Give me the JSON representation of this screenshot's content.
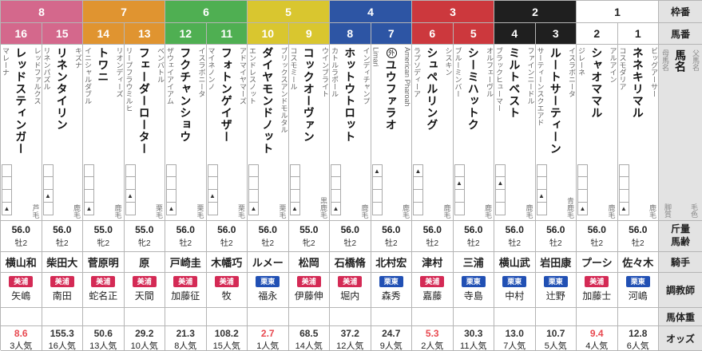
{
  "labels": {
    "frame": "枠番",
    "number": "馬番",
    "horse_name": "馬名",
    "sire": "父馬名",
    "dam": "母馬名",
    "running_style": "脚質",
    "coat": "毛色",
    "weight_age": "斤量\n馬齢",
    "jockey": "騎手",
    "trainer": "調教師",
    "body_weight": "馬体重",
    "odds": "オッズ"
  },
  "colors": {
    "hot_odds": "#e8484f",
    "region": {
      "美浦": "#d42a55",
      "栗東": "#2150b4"
    }
  },
  "frames": [
    {
      "num": "8",
      "bg": "#d4688c",
      "fg": "#ffffff"
    },
    {
      "num": "7",
      "bg": "#e09430",
      "fg": "#ffffff"
    },
    {
      "num": "6",
      "bg": "#4faf52",
      "fg": "#ffffff"
    },
    {
      "num": "5",
      "bg": "#d9c62f",
      "fg": "#ffffff"
    },
    {
      "num": "4",
      "bg": "#2d55a4",
      "fg": "#ffffff"
    },
    {
      "num": "3",
      "bg": "#cc383d",
      "fg": "#ffffff"
    },
    {
      "num": "2",
      "bg": "#1f1f1f",
      "fg": "#ffffff"
    },
    {
      "num": "1",
      "bg": "#ffffff",
      "fg": "#222222"
    }
  ],
  "horses": [
    {
      "num": "16",
      "frame": "8",
      "sire": "レッドファルクス",
      "name": "レッドスティンガー",
      "dam": "マレーナ",
      "mark": "",
      "coat": "芦毛",
      "style": 4,
      "weight": "56.0",
      "sexage": "牡2",
      "jockey": "横山和",
      "region": "美浦",
      "trainer": "矢嶋",
      "odds": "8.6",
      "pop": "3人気",
      "hot": true
    },
    {
      "num": "15",
      "frame": "8",
      "sire": "キズナ",
      "name": "リネンタイリン",
      "dam": "リネンパズル",
      "mark": "",
      "coat": "鹿毛",
      "style": 3,
      "weight": "56.0",
      "sexage": "牡2",
      "jockey": "柴田大",
      "region": "美浦",
      "trainer": "南田",
      "odds": "155.3",
      "pop": "16人気",
      "hot": false
    },
    {
      "num": "14",
      "frame": "7",
      "sire": "リオンディーズ",
      "name": "トワニ",
      "dam": "イニシャルダブル",
      "mark": "",
      "coat": "鹿毛",
      "style": 4,
      "weight": "55.0",
      "sexage": "牝2",
      "jockey": "菅原明",
      "region": "美浦",
      "trainer": "蛇名正",
      "odds": "50.6",
      "pop": "13人気",
      "hot": false
    },
    {
      "num": "13",
      "frame": "7",
      "sire": "ベンバトル",
      "name": "フェーダーローター",
      "dam": "リープフラウミルヒ",
      "mark": "",
      "coat": "栗毛",
      "style": 3,
      "weight": "55.0",
      "sexage": "牝2",
      "jockey": "原",
      "region": "美浦",
      "trainer": "天間",
      "odds": "29.2",
      "pop": "10人気",
      "hot": false
    },
    {
      "num": "12",
      "frame": "6",
      "sire": "イスラボニータ",
      "name": "フクチャンショウ",
      "dam": "ザウェイアイアム",
      "mark": "",
      "coat": "栗毛",
      "style": 4,
      "weight": "56.0",
      "sexage": "牡2",
      "jockey": "戸崎圭",
      "region": "美浦",
      "trainer": "加藤征",
      "odds": "21.3",
      "pop": "8人気",
      "hot": false
    },
    {
      "num": "11",
      "frame": "6",
      "sire": "アドマイヤマーズ",
      "name": "フォトンゲイザー",
      "dam": "マイネノンノ",
      "mark": "",
      "coat": "栗毛",
      "style": 3,
      "weight": "56.0",
      "sexage": "牡2",
      "jockey": "木幡巧",
      "region": "美浦",
      "trainer": "牧",
      "odds": "108.2",
      "pop": "15人気",
      "hot": false
    },
    {
      "num": "10",
      "frame": "5",
      "sire": "ブリックスアンドモルタル",
      "name": "ダイヤモンドノット",
      "dam": "エンドレスノット",
      "mark": "",
      "coat": "栗毛",
      "style": 4,
      "weight": "56.0",
      "sexage": "牡2",
      "jockey": "ルメー",
      "region": "栗東",
      "trainer": "福永",
      "odds": "2.7",
      "pop": "1人気",
      "hot": true
    },
    {
      "num": "9",
      "frame": "5",
      "sire": "ウインブライト",
      "name": "コックオーヴァン",
      "dam": "コスモミール",
      "mark": "",
      "coat": "黒鹿毛",
      "style": 4,
      "weight": "55.0",
      "sexage": "牝2",
      "jockey": "松岡",
      "region": "美浦",
      "trainer": "伊藤伸",
      "odds": "68.5",
      "pop": "14人気",
      "hot": false
    },
    {
      "num": "8",
      "frame": "4",
      "sire": "インディチャンプ",
      "name": "ホットウトロット",
      "dam": "カトルラポール",
      "mark": "",
      "coat": "鹿毛",
      "style": 4,
      "weight": "56.0",
      "sexage": "牡2",
      "jockey": "石橋脩",
      "region": "美浦",
      "trainer": "堀内",
      "odds": "37.2",
      "pop": "12人気",
      "hot": false
    },
    {
      "num": "7",
      "frame": "4",
      "sire": "American Pharoah",
      "name": "ユウファラオ",
      "dam": "Limari",
      "mark": "外",
      "coat": "鹿毛",
      "style": 1,
      "weight": "56.0",
      "sexage": "牡2",
      "jockey": "北村宏",
      "region": "栗東",
      "trainer": "森秀",
      "odds": "24.7",
      "pop": "9人気",
      "hot": false
    },
    {
      "num": "6",
      "frame": "3",
      "sire": "シスキン",
      "name": "シュペルリング",
      "dam": "ラプソディーア",
      "mark": "",
      "coat": "鹿毛",
      "style": 1,
      "weight": "56.0",
      "sexage": "牡2",
      "jockey": "津村",
      "region": "美浦",
      "trainer": "嘉藤",
      "odds": "5.3",
      "pop": "2人気",
      "hot": true
    },
    {
      "num": "5",
      "frame": "3",
      "sire": "オルフェーヴル",
      "name": "シーミハットク",
      "dam": "ブルーミンバー",
      "mark": "",
      "coat": "鹿毛",
      "style": 2,
      "weight": "56.0",
      "sexage": "牡2",
      "jockey": "三浦",
      "region": "栗東",
      "trainer": "寺島",
      "odds": "30.3",
      "pop": "11人気",
      "hot": false
    },
    {
      "num": "4",
      "frame": "2",
      "sire": "ファインニードル",
      "name": "ミルトベスト",
      "dam": "ブラックヒューマー",
      "mark": "",
      "coat": "鹿毛",
      "style": 2,
      "weight": "56.0",
      "sexage": "牡2",
      "jockey": "横山武",
      "region": "栗東",
      "trainer": "中村",
      "odds": "13.0",
      "pop": "7人気",
      "hot": false
    },
    {
      "num": "3",
      "frame": "2",
      "sire": "イスラボニータ",
      "name": "ルートサーティーン",
      "dam": "サーティーンスクエアド",
      "mark": "",
      "coat": "青鹿毛",
      "style": 3,
      "weight": "56.0",
      "sexage": "牡2",
      "jockey": "岩田康",
      "region": "栗東",
      "trainer": "辻野",
      "odds": "10.7",
      "pop": "5人気",
      "hot": false
    },
    {
      "num": "2",
      "frame": "1",
      "sire": "アルアイン",
      "name": "シャオママル",
      "dam": "ジレーネ",
      "mark": "",
      "coat": "鹿毛",
      "style": 4,
      "weight": "56.0",
      "sexage": "牡2",
      "jockey": "プーシ",
      "region": "美浦",
      "trainer": "加藤士",
      "odds": "9.4",
      "pop": "4人気",
      "hot": true
    },
    {
      "num": "1",
      "frame": "1",
      "sire": "ビッグアーサー",
      "name": "ネネキリマル",
      "dam": "コスモダリア",
      "mark": "",
      "coat": "鹿毛",
      "style": 4,
      "weight": "56.0",
      "sexage": "牡2",
      "jockey": "佐々木",
      "region": "栗東",
      "trainer": "河嶋",
      "odds": "12.8",
      "pop": "6人気",
      "hot": false
    }
  ]
}
